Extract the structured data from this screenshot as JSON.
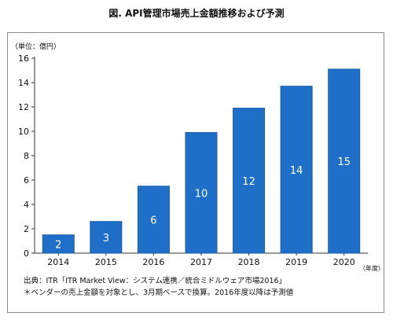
{
  "title": "図. API管理市場売上金額推移および予測",
  "unit_label": "（単位：億円）",
  "x_unit_label": "（年度）",
  "notes": [
    "出典：ITR「ITR Market View：システム連携／統合ミドルウェア市場2016」",
    "＊ベンダーの売上金額を対象とし、3月期ベースで換算。2016年度以降は予測値"
  ],
  "chart_data": {
    "type": "bar",
    "title": "図. API管理市場売上金額推移および予測",
    "ylabel": "（単位：億円）",
    "xlabel": "（年度）",
    "categories": [
      "2014",
      "2015",
      "2016",
      "2017",
      "2018",
      "2019",
      "2020"
    ],
    "values": [
      1.5,
      2.6,
      5.5,
      9.9,
      11.9,
      13.7,
      15.1
    ],
    "data_labels": [
      "2",
      "3",
      "6",
      "10",
      "12",
      "14",
      "15"
    ],
    "ylim": [
      0,
      16
    ],
    "yticks": [
      0,
      2,
      4,
      6,
      8,
      10,
      12,
      14,
      16
    ],
    "grid": false,
    "colors": {
      "bar": "#1f6fc8",
      "bar_edge": "#1a5ea8",
      "label": "#ffffff",
      "axis": "#333333"
    }
  }
}
